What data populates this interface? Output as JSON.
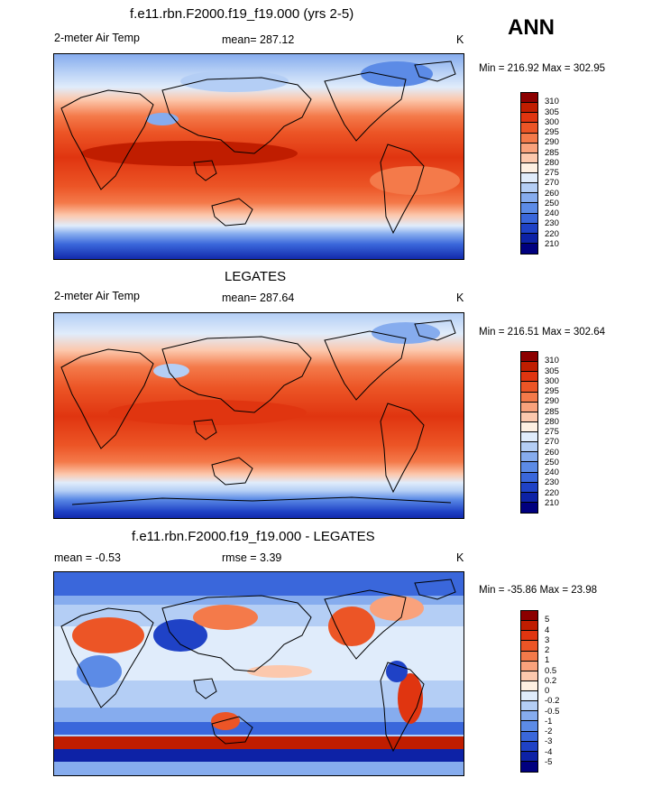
{
  "header": {
    "season": "ANN"
  },
  "panels": [
    {
      "title": "f.e11.rbn.F2000.f19_f19.000 (yrs 2-5)",
      "left_label": "2-meter Air Temp",
      "center_label": "mean= 287.12",
      "right_label": "K",
      "minmax": "Min = 216.92 Max = 302.95",
      "colorbar_ticks": [
        "310",
        "305",
        "300",
        "295",
        "290",
        "285",
        "280",
        "275",
        "270",
        "260",
        "250",
        "240",
        "230",
        "220",
        "210"
      ],
      "colorbar_colors": [
        "#8c0000",
        "#c01d00",
        "#e03510",
        "#ec5526",
        "#f47a4a",
        "#f9a27c",
        "#fcc8ad",
        "#fef0e2",
        "#e0ecfb",
        "#b4cef5",
        "#86acee",
        "#5c8be6",
        "#3a67db",
        "#1f42c6",
        "#0d22a6",
        "#00007f"
      ]
    },
    {
      "title": "LEGATES",
      "left_label": "2-meter Air Temp",
      "center_label": "mean= 287.64",
      "right_label": "K",
      "minmax": "Min = 216.51 Max = 302.64",
      "colorbar_ticks": [
        "310",
        "305",
        "300",
        "295",
        "290",
        "285",
        "280",
        "275",
        "270",
        "260",
        "250",
        "240",
        "230",
        "220",
        "210"
      ],
      "colorbar_colors": [
        "#8c0000",
        "#c01d00",
        "#e03510",
        "#ec5526",
        "#f47a4a",
        "#f9a27c",
        "#fcc8ad",
        "#fef0e2",
        "#e0ecfb",
        "#b4cef5",
        "#86acee",
        "#5c8be6",
        "#3a67db",
        "#1f42c6",
        "#0d22a6",
        "#00007f"
      ]
    },
    {
      "title": "f.e11.rbn.F2000.f19_f19.000 - LEGATES",
      "left_label": "mean =  -0.53",
      "center_label": "rmse =   3.39",
      "right_label": "K",
      "minmax": "Min = -35.86 Max =  23.98",
      "colorbar_ticks": [
        "5",
        "4",
        "3",
        "2",
        "1",
        "0.5",
        "0.2",
        "0",
        "-0.2",
        "-0.5",
        "-1",
        "-2",
        "-3",
        "-4",
        "-5"
      ],
      "colorbar_colors": [
        "#8c0000",
        "#c01d00",
        "#e03510",
        "#ec5526",
        "#f47a4a",
        "#f9a27c",
        "#fcc8ad",
        "#fef0e2",
        "#e0ecfb",
        "#b4cef5",
        "#86acee",
        "#5c8be6",
        "#3a67db",
        "#1f42c6",
        "#0d22a6",
        "#00007f"
      ]
    }
  ]
}
